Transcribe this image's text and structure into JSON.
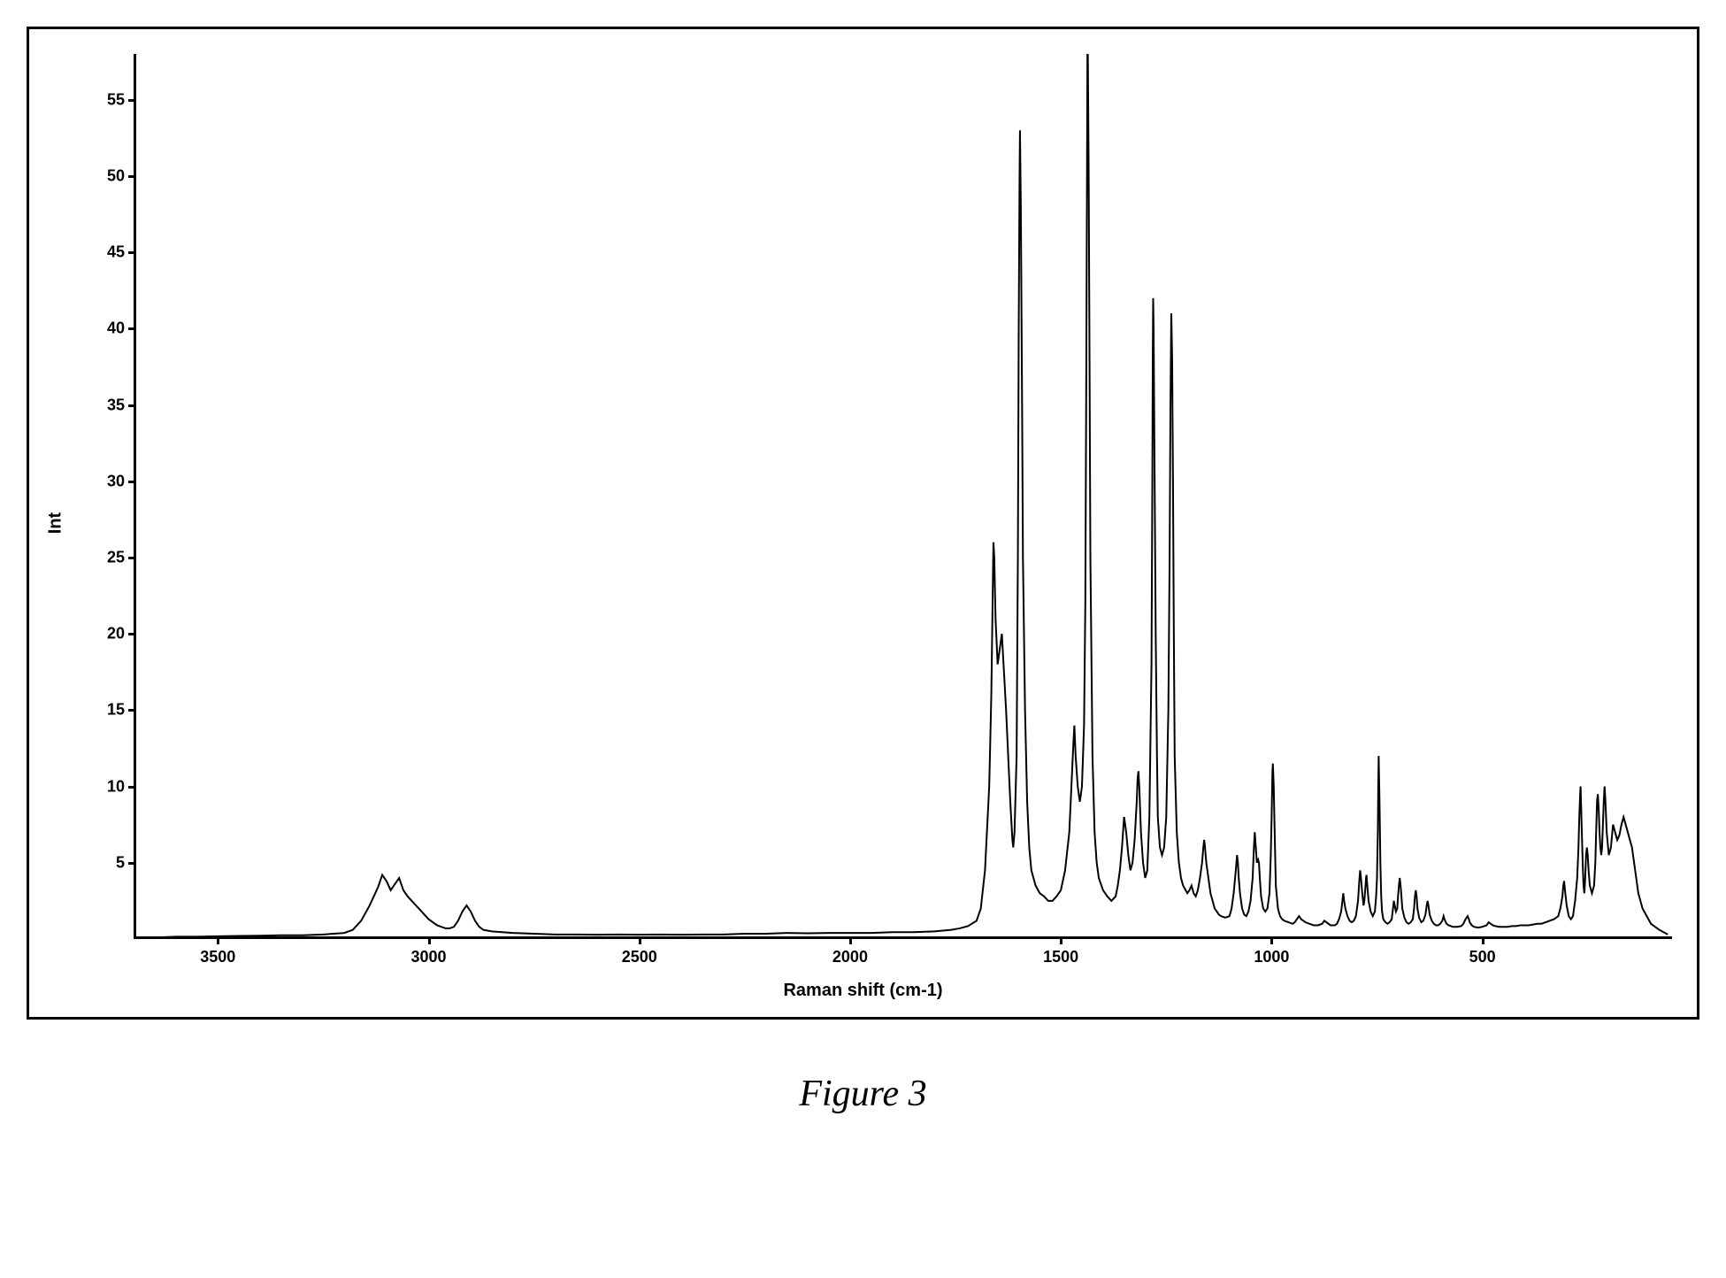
{
  "caption": "Figure 3",
  "chart": {
    "type": "line",
    "xlabel": "Raman shift (cm-1)",
    "ylabel": "Int",
    "xlim": [
      3700,
      50
    ],
    "ylim": [
      0,
      58
    ],
    "x_reversed": true,
    "xticks": [
      3500,
      3000,
      2500,
      2000,
      1500,
      1000,
      500
    ],
    "yticks": [
      5,
      10,
      15,
      20,
      25,
      30,
      35,
      40,
      45,
      50,
      55
    ],
    "label_fontsize": 20,
    "tick_fontsize": 18,
    "line_color": "#000000",
    "line_width": 2,
    "background_color": "#ffffff",
    "border_color": "#000000",
    "data": [
      [
        3700,
        0.1
      ],
      [
        3650,
        0.1
      ],
      [
        3600,
        0.15
      ],
      [
        3550,
        0.15
      ],
      [
        3500,
        0.18
      ],
      [
        3450,
        0.2
      ],
      [
        3400,
        0.22
      ],
      [
        3350,
        0.25
      ],
      [
        3300,
        0.25
      ],
      [
        3250,
        0.3
      ],
      [
        3200,
        0.4
      ],
      [
        3180,
        0.6
      ],
      [
        3160,
        1.2
      ],
      [
        3140,
        2.2
      ],
      [
        3120,
        3.4
      ],
      [
        3110,
        4.2
      ],
      [
        3100,
        3.8
      ],
      [
        3090,
        3.2
      ],
      [
        3080,
        3.6
      ],
      [
        3070,
        4.0
      ],
      [
        3060,
        3.2
      ],
      [
        3050,
        2.8
      ],
      [
        3040,
        2.5
      ],
      [
        3030,
        2.2
      ],
      [
        3020,
        1.9
      ],
      [
        3010,
        1.6
      ],
      [
        3000,
        1.3
      ],
      [
        2990,
        1.1
      ],
      [
        2980,
        0.9
      ],
      [
        2970,
        0.8
      ],
      [
        2960,
        0.7
      ],
      [
        2950,
        0.7
      ],
      [
        2940,
        0.8
      ],
      [
        2930,
        1.2
      ],
      [
        2920,
        1.8
      ],
      [
        2910,
        2.2
      ],
      [
        2900,
        1.8
      ],
      [
        2890,
        1.2
      ],
      [
        2880,
        0.8
      ],
      [
        2870,
        0.6
      ],
      [
        2850,
        0.5
      ],
      [
        2800,
        0.4
      ],
      [
        2750,
        0.35
      ],
      [
        2700,
        0.3
      ],
      [
        2650,
        0.3
      ],
      [
        2600,
        0.28
      ],
      [
        2550,
        0.3
      ],
      [
        2500,
        0.28
      ],
      [
        2450,
        0.3
      ],
      [
        2400,
        0.28
      ],
      [
        2350,
        0.3
      ],
      [
        2300,
        0.3
      ],
      [
        2250,
        0.35
      ],
      [
        2200,
        0.35
      ],
      [
        2150,
        0.4
      ],
      [
        2100,
        0.38
      ],
      [
        2050,
        0.4
      ],
      [
        2000,
        0.4
      ],
      [
        1950,
        0.4
      ],
      [
        1900,
        0.45
      ],
      [
        1850,
        0.45
      ],
      [
        1800,
        0.5
      ],
      [
        1780,
        0.55
      ],
      [
        1760,
        0.6
      ],
      [
        1740,
        0.7
      ],
      [
        1720,
        0.85
      ],
      [
        1700,
        1.2
      ],
      [
        1690,
        2.0
      ],
      [
        1680,
        4.5
      ],
      [
        1670,
        10
      ],
      [
        1665,
        16
      ],
      [
        1662,
        22
      ],
      [
        1660,
        26
      ],
      [
        1658,
        25
      ],
      [
        1655,
        21
      ],
      [
        1650,
        18
      ],
      [
        1645,
        19
      ],
      [
        1640,
        20
      ],
      [
        1635,
        17.5
      ],
      [
        1630,
        15
      ],
      [
        1620,
        9
      ],
      [
        1615,
        6.5
      ],
      [
        1613,
        6
      ],
      [
        1610,
        7
      ],
      [
        1605,
        12
      ],
      [
        1602,
        25
      ],
      [
        1600,
        40
      ],
      [
        1598,
        50
      ],
      [
        1597,
        53
      ],
      [
        1595,
        48
      ],
      [
        1592,
        35
      ],
      [
        1590,
        25
      ],
      [
        1585,
        15
      ],
      [
        1580,
        9
      ],
      [
        1575,
        6
      ],
      [
        1570,
        4.5
      ],
      [
        1560,
        3.5
      ],
      [
        1550,
        3
      ],
      [
        1540,
        2.8
      ],
      [
        1530,
        2.5
      ],
      [
        1520,
        2.5
      ],
      [
        1510,
        2.8
      ],
      [
        1500,
        3.2
      ],
      [
        1490,
        4.5
      ],
      [
        1480,
        7
      ],
      [
        1475,
        10
      ],
      [
        1470,
        13
      ],
      [
        1468,
        14
      ],
      [
        1465,
        12
      ],
      [
        1460,
        10
      ],
      [
        1455,
        9
      ],
      [
        1450,
        10
      ],
      [
        1445,
        14
      ],
      [
        1442,
        22
      ],
      [
        1440,
        35
      ],
      [
        1438,
        50
      ],
      [
        1437,
        58
      ],
      [
        1436,
        58
      ],
      [
        1434,
        50
      ],
      [
        1432,
        38
      ],
      [
        1430,
        25
      ],
      [
        1425,
        12
      ],
      [
        1420,
        7
      ],
      [
        1415,
        5
      ],
      [
        1410,
        4
      ],
      [
        1400,
        3.2
      ],
      [
        1390,
        2.8
      ],
      [
        1380,
        2.5
      ],
      [
        1370,
        2.8
      ],
      [
        1365,
        3.5
      ],
      [
        1360,
        4.5
      ],
      [
        1355,
        6
      ],
      [
        1350,
        8
      ],
      [
        1345,
        7
      ],
      [
        1340,
        5.5
      ],
      [
        1335,
        4.5
      ],
      [
        1330,
        5
      ],
      [
        1325,
        6.5
      ],
      [
        1320,
        9
      ],
      [
        1318,
        10.5
      ],
      [
        1316,
        11
      ],
      [
        1314,
        10
      ],
      [
        1310,
        7
      ],
      [
        1305,
        5
      ],
      [
        1300,
        4
      ],
      [
        1295,
        4.5
      ],
      [
        1290,
        8
      ],
      [
        1285,
        18
      ],
      [
        1283,
        30
      ],
      [
        1282,
        38
      ],
      [
        1281,
        42
      ],
      [
        1280,
        40
      ],
      [
        1278,
        32
      ],
      [
        1275,
        20
      ],
      [
        1272,
        12
      ],
      [
        1270,
        8
      ],
      [
        1265,
        6
      ],
      [
        1260,
        5.5
      ],
      [
        1255,
        6
      ],
      [
        1250,
        8
      ],
      [
        1245,
        15
      ],
      [
        1242,
        25
      ],
      [
        1240,
        35
      ],
      [
        1238,
        41
      ],
      [
        1236,
        38
      ],
      [
        1234,
        30
      ],
      [
        1232,
        20
      ],
      [
        1230,
        12
      ],
      [
        1225,
        7
      ],
      [
        1220,
        5
      ],
      [
        1215,
        4
      ],
      [
        1210,
        3.5
      ],
      [
        1200,
        3
      ],
      [
        1195,
        3.2
      ],
      [
        1190,
        3.5
      ],
      [
        1185,
        3
      ],
      [
        1180,
        2.8
      ],
      [
        1175,
        3.2
      ],
      [
        1170,
        4
      ],
      [
        1165,
        5
      ],
      [
        1162,
        6
      ],
      [
        1160,
        6.5
      ],
      [
        1158,
        6
      ],
      [
        1155,
        5
      ],
      [
        1150,
        4
      ],
      [
        1145,
        3
      ],
      [
        1140,
        2.5
      ],
      [
        1135,
        2
      ],
      [
        1130,
        1.8
      ],
      [
        1125,
        1.6
      ],
      [
        1120,
        1.5
      ],
      [
        1110,
        1.4
      ],
      [
        1100,
        1.5
      ],
      [
        1095,
        2
      ],
      [
        1090,
        3
      ],
      [
        1085,
        4.5
      ],
      [
        1082,
        5.5
      ],
      [
        1080,
        5
      ],
      [
        1078,
        4
      ],
      [
        1075,
        3
      ],
      [
        1070,
        2
      ],
      [
        1065,
        1.6
      ],
      [
        1060,
        1.5
      ],
      [
        1055,
        1.8
      ],
      [
        1050,
        2.5
      ],
      [
        1045,
        4
      ],
      [
        1042,
        6
      ],
      [
        1040,
        7
      ],
      [
        1038,
        6.2
      ],
      [
        1035,
        5
      ],
      [
        1032,
        5.2
      ],
      [
        1030,
        5
      ],
      [
        1028,
        4
      ],
      [
        1025,
        2.8
      ],
      [
        1020,
        2
      ],
      [
        1015,
        1.8
      ],
      [
        1010,
        2
      ],
      [
        1005,
        3
      ],
      [
        1002,
        5.5
      ],
      [
        1000,
        8
      ],
      [
        998,
        11
      ],
      [
        997,
        11.5
      ],
      [
        995,
        10
      ],
      [
        992,
        6
      ],
      [
        990,
        3.5
      ],
      [
        985,
        2
      ],
      [
        980,
        1.5
      ],
      [
        975,
        1.3
      ],
      [
        970,
        1.2
      ],
      [
        960,
        1.1
      ],
      [
        950,
        1.0
      ],
      [
        945,
        1.1
      ],
      [
        940,
        1.3
      ],
      [
        935,
        1.5
      ],
      [
        930,
        1.3
      ],
      [
        925,
        1.2
      ],
      [
        920,
        1.1
      ],
      [
        910,
        1.0
      ],
      [
        900,
        0.9
      ],
      [
        890,
        0.9
      ],
      [
        880,
        1.0
      ],
      [
        875,
        1.2
      ],
      [
        870,
        1.1
      ],
      [
        865,
        1.0
      ],
      [
        860,
        0.9
      ],
      [
        850,
        0.9
      ],
      [
        845,
        1.0
      ],
      [
        840,
        1.3
      ],
      [
        835,
        1.8
      ],
      [
        832,
        2.5
      ],
      [
        830,
        3
      ],
      [
        828,
        2.5
      ],
      [
        825,
        2
      ],
      [
        820,
        1.5
      ],
      [
        815,
        1.2
      ],
      [
        810,
        1.1
      ],
      [
        805,
        1.2
      ],
      [
        800,
        1.5
      ],
      [
        795,
        2.5
      ],
      [
        792,
        3.8
      ],
      [
        790,
        4.5
      ],
      [
        788,
        4
      ],
      [
        785,
        3
      ],
      [
        782,
        2.2
      ],
      [
        780,
        2.5
      ],
      [
        778,
        3.2
      ],
      [
        776,
        4
      ],
      [
        775,
        4.2
      ],
      [
        773,
        3.5
      ],
      [
        770,
        2.5
      ],
      [
        765,
        1.8
      ],
      [
        760,
        1.5
      ],
      [
        755,
        1.8
      ],
      [
        752,
        2.8
      ],
      [
        750,
        4
      ],
      [
        748,
        7
      ],
      [
        747,
        10
      ],
      [
        746,
        12
      ],
      [
        744,
        9
      ],
      [
        742,
        5
      ],
      [
        740,
        2.8
      ],
      [
        738,
        1.8
      ],
      [
        735,
        1.3
      ],
      [
        730,
        1.1
      ],
      [
        725,
        1.0
      ],
      [
        720,
        1.1
      ],
      [
        715,
        1.3
      ],
      [
        712,
        2
      ],
      [
        710,
        2.5
      ],
      [
        708,
        2.2
      ],
      [
        705,
        1.8
      ],
      [
        702,
        2
      ],
      [
        700,
        2.8
      ],
      [
        698,
        3.5
      ],
      [
        696,
        4
      ],
      [
        694,
        3.5
      ],
      [
        692,
        2.8
      ],
      [
        690,
        2
      ],
      [
        685,
        1.4
      ],
      [
        680,
        1.1
      ],
      [
        675,
        1.0
      ],
      [
        670,
        1.1
      ],
      [
        665,
        1.3
      ],
      [
        662,
        2
      ],
      [
        660,
        2.8
      ],
      [
        658,
        3.2
      ],
      [
        656,
        2.8
      ],
      [
        654,
        2
      ],
      [
        650,
        1.4
      ],
      [
        645,
        1.1
      ],
      [
        640,
        1.2
      ],
      [
        635,
        1.6
      ],
      [
        632,
        2.2
      ],
      [
        630,
        2.5
      ],
      [
        628,
        2.2
      ],
      [
        625,
        1.6
      ],
      [
        620,
        1.2
      ],
      [
        615,
        1.0
      ],
      [
        610,
        0.9
      ],
      [
        605,
        0.9
      ],
      [
        600,
        1.0
      ],
      [
        595,
        1.2
      ],
      [
        592,
        1.5
      ],
      [
        590,
        1.3
      ],
      [
        585,
        1.0
      ],
      [
        580,
        0.9
      ],
      [
        575,
        0.85
      ],
      [
        570,
        0.8
      ],
      [
        560,
        0.8
      ],
      [
        550,
        0.85
      ],
      [
        545,
        1.0
      ],
      [
        540,
        1.3
      ],
      [
        535,
        1.5
      ],
      [
        532,
        1.3
      ],
      [
        530,
        1.1
      ],
      [
        525,
        0.9
      ],
      [
        520,
        0.8
      ],
      [
        510,
        0.75
      ],
      [
        500,
        0.8
      ],
      [
        490,
        0.9
      ],
      [
        485,
        1.1
      ],
      [
        480,
        1.0
      ],
      [
        475,
        0.9
      ],
      [
        470,
        0.85
      ],
      [
        460,
        0.8
      ],
      [
        450,
        0.8
      ],
      [
        440,
        0.8
      ],
      [
        430,
        0.85
      ],
      [
        420,
        0.85
      ],
      [
        410,
        0.9
      ],
      [
        400,
        0.9
      ],
      [
        390,
        0.9
      ],
      [
        380,
        0.95
      ],
      [
        370,
        1.0
      ],
      [
        360,
        1.0
      ],
      [
        350,
        1.1
      ],
      [
        340,
        1.2
      ],
      [
        330,
        1.3
      ],
      [
        320,
        1.5
      ],
      [
        315,
        2
      ],
      [
        310,
        2.8
      ],
      [
        308,
        3.5
      ],
      [
        306,
        3.8
      ],
      [
        304,
        3.2
      ],
      [
        300,
        2.2
      ],
      [
        295,
        1.5
      ],
      [
        290,
        1.3
      ],
      [
        285,
        1.5
      ],
      [
        280,
        2.5
      ],
      [
        275,
        4
      ],
      [
        272,
        6
      ],
      [
        270,
        8
      ],
      [
        268,
        9.5
      ],
      [
        267,
        10
      ],
      [
        266,
        9
      ],
      [
        264,
        7
      ],
      [
        262,
        5
      ],
      [
        260,
        3.5
      ],
      [
        258,
        3
      ],
      [
        256,
        4
      ],
      [
        254,
        5.5
      ],
      [
        252,
        6
      ],
      [
        250,
        5.5
      ],
      [
        248,
        4.5
      ],
      [
        245,
        3.5
      ],
      [
        240,
        3
      ],
      [
        235,
        3.5
      ],
      [
        232,
        5
      ],
      [
        230,
        7
      ],
      [
        228,
        9
      ],
      [
        226,
        9.5
      ],
      [
        224,
        8.5
      ],
      [
        222,
        7
      ],
      [
        220,
        6
      ],
      [
        218,
        5.5
      ],
      [
        216,
        6
      ],
      [
        214,
        7.5
      ],
      [
        212,
        9
      ],
      [
        210,
        10
      ],
      [
        208,
        9
      ],
      [
        205,
        7
      ],
      [
        200,
        5.5
      ],
      [
        195,
        6
      ],
      [
        190,
        7.5
      ],
      [
        185,
        7
      ],
      [
        180,
        6.5
      ],
      [
        175,
        6.8
      ],
      [
        170,
        7.5
      ],
      [
        165,
        8
      ],
      [
        160,
        7.5
      ],
      [
        155,
        7
      ],
      [
        150,
        6.5
      ],
      [
        145,
        6
      ],
      [
        140,
        5
      ],
      [
        135,
        4
      ],
      [
        130,
        3
      ],
      [
        120,
        2
      ],
      [
        110,
        1.5
      ],
      [
        100,
        1
      ],
      [
        80,
        0.6
      ],
      [
        60,
        0.3
      ]
    ]
  }
}
